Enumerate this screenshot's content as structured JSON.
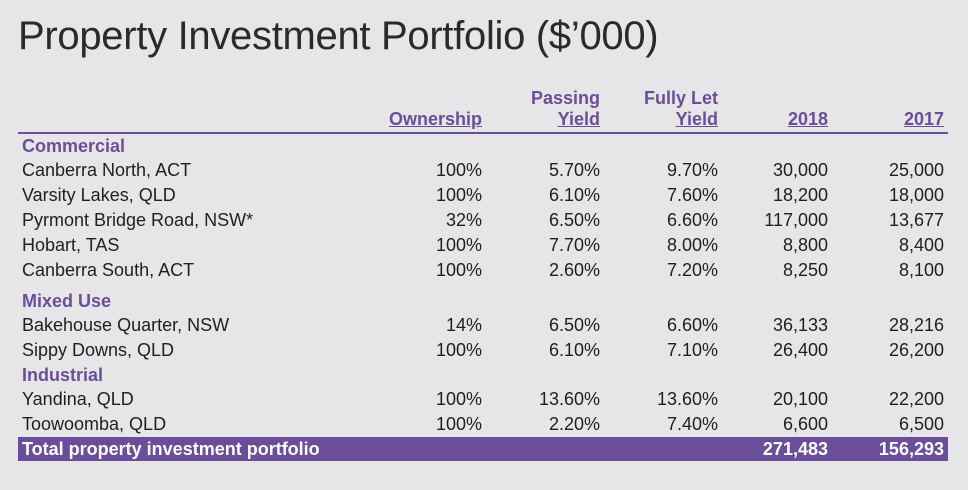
{
  "title": "Property Investment Portfolio ($’000)",
  "headers": {
    "ownership": "Ownership",
    "passing_yield_l1": "Passing",
    "passing_yield_l2": "Yield",
    "fully_let_l1": "Fully Let",
    "fully_let_l2": "Yield",
    "y2018": "2018",
    "y2017": "2017"
  },
  "sections": [
    {
      "label": "Commercial",
      "rows": [
        {
          "name": "Canberra North, ACT",
          "ownership": "100%",
          "passing": "5.70%",
          "fully_let": "9.70%",
          "v2018": "30,000",
          "v2017": "25,000"
        },
        {
          "name": "Varsity Lakes, QLD",
          "ownership": "100%",
          "passing": "6.10%",
          "fully_let": "7.60%",
          "v2018": "18,200",
          "v2017": "18,000"
        },
        {
          "name": "Pyrmont Bridge Road, NSW*",
          "ownership": "32%",
          "passing": "6.50%",
          "fully_let": "6.60%",
          "v2018": "117,000",
          "v2017": "13,677"
        },
        {
          "name": "Hobart, TAS",
          "ownership": "100%",
          "passing": "7.70%",
          "fully_let": "8.00%",
          "v2018": "8,800",
          "v2017": "8,400"
        },
        {
          "name": "Canberra South, ACT",
          "ownership": "100%",
          "passing": "2.60%",
          "fully_let": "7.20%",
          "v2018": "8,250",
          "v2017": "8,100"
        }
      ]
    },
    {
      "label": "Mixed Use",
      "rows": [
        {
          "name": "Bakehouse Quarter, NSW",
          "ownership": "14%",
          "passing": "6.50%",
          "fully_let": "6.60%",
          "v2018": "36,133",
          "v2017": "28,216"
        },
        {
          "name": "Sippy Downs, QLD",
          "ownership": "100%",
          "passing": "6.10%",
          "fully_let": "7.10%",
          "v2018": "26,400",
          "v2017": "26,200"
        }
      ]
    },
    {
      "label": "Industrial",
      "rows": [
        {
          "name": "Yandina, QLD",
          "ownership": "100%",
          "passing": "13.60%",
          "fully_let": "13.60%",
          "v2018": "20,100",
          "v2017": "22,200"
        },
        {
          "name": "Toowoomba, QLD",
          "ownership": "100%",
          "passing": "2.20%",
          "fully_let": "7.40%",
          "v2018": "6,600",
          "v2017": "6,500"
        }
      ]
    }
  ],
  "total": {
    "label": "Total property investment portfolio",
    "v2018": "271,483",
    "v2017": "156,293"
  },
  "colors": {
    "accent": "#6a4e9a",
    "background": "#e6e6e8"
  }
}
